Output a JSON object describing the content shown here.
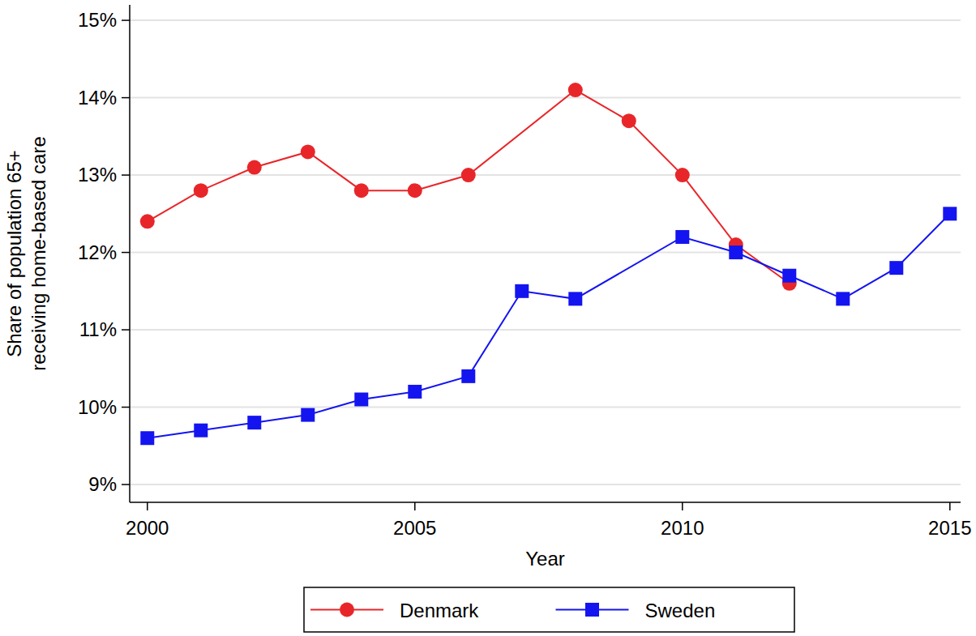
{
  "chart_data": {
    "type": "line",
    "xlabel": "Year",
    "ylabel": "Share of population 65+\nreceiving home-based care",
    "xlim": [
      1999.67,
      2015.2
    ],
    "xticks": [
      2000,
      2005,
      2010,
      2015
    ],
    "ylim": [
      8.77,
      15.2
    ],
    "yticks": [
      {
        "value": 9,
        "label": "9%"
      },
      {
        "value": 10,
        "label": "10%"
      },
      {
        "value": 11,
        "label": "11%"
      },
      {
        "value": 12,
        "label": "12%"
      },
      {
        "value": 13,
        "label": "13%"
      },
      {
        "value": 14,
        "label": "14%"
      },
      {
        "value": 15,
        "label": "15%"
      }
    ],
    "grid": true,
    "legend": "bottom",
    "series": [
      {
        "name": "Denmark",
        "color": "#e8262a",
        "marker": "circle",
        "line_style": "solid",
        "x": [
          2000,
          2001,
          2002,
          2003,
          2004,
          2005,
          2006,
          2008,
          2009,
          2010,
          2011,
          2012
        ],
        "values": [
          12.4,
          12.8,
          13.1,
          13.3,
          12.8,
          12.8,
          13.0,
          14.1,
          13.7,
          13.0,
          12.1,
          11.6
        ]
      },
      {
        "name": "Sweden",
        "color": "#1414f0",
        "marker": "square",
        "line_style": "solid",
        "x": [
          2000,
          2001,
          2002,
          2003,
          2004,
          2005,
          2006,
          2007,
          2008,
          2010,
          2011,
          2012,
          2013,
          2014,
          2015
        ],
        "values": [
          9.6,
          9.7,
          9.8,
          9.9,
          10.1,
          10.2,
          10.4,
          11.5,
          11.4,
          12.2,
          12.0,
          11.7,
          11.4,
          11.8,
          12.5
        ]
      }
    ]
  }
}
